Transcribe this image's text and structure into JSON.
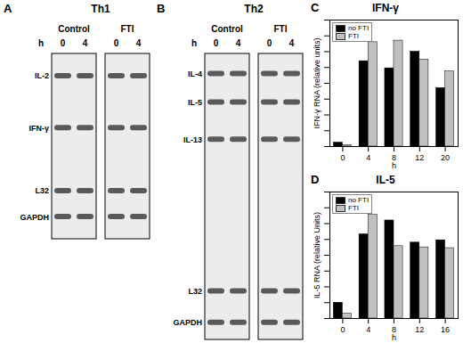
{
  "gels": [
    {
      "panel": "A",
      "title": "Th1",
      "groups": [
        "Control",
        "FTI"
      ],
      "unit": "h",
      "lanes": [
        "0",
        "4"
      ],
      "bands": [
        "IL-2",
        "IFN-γ",
        "L32",
        "GAPDH"
      ]
    },
    {
      "panel": "B",
      "title": "Th2",
      "groups": [
        "Control",
        "FTI"
      ],
      "unit": "h",
      "lanes": [
        "0",
        "4"
      ],
      "bands": [
        "IL-4",
        "IL-5",
        "IL-13",
        "L32",
        "GAPDH"
      ]
    }
  ],
  "chart_data": [
    {
      "type": "bar",
      "panel": "C",
      "title": "IFN-γ",
      "x_label": "h",
      "y_label": "IFN-γ RNA (relative units)",
      "categories": [
        0,
        4,
        8,
        12,
        20
      ],
      "series": [
        {
          "name": "no FTI",
          "color": "#000000",
          "values": [
            5,
            108,
            99,
            120,
            74
          ]
        },
        {
          "name": "FTI",
          "color": "#c0c0c0",
          "values": [
            2,
            132,
            134,
            110,
            95
          ]
        }
      ],
      "ylim": [
        0,
        160
      ],
      "yticks": [
        0,
        20,
        40,
        60,
        80,
        100,
        120,
        140,
        160
      ],
      "tick_labels": "x",
      "legend": "top-left"
    },
    {
      "type": "bar",
      "panel": "D",
      "title": "IL-5",
      "x_label": "h",
      "y_label": "IL-5 RNA (relative Units)",
      "categories": [
        0,
        4,
        8,
        12,
        16
      ],
      "series": [
        {
          "name": "no FTI",
          "color": "#000000",
          "values": [
            40,
            213,
            248,
            192,
            198
          ]
        },
        {
          "name": "FTI",
          "color": "#c0c0c0",
          "values": [
            12,
            262,
            183,
            180,
            178
          ]
        }
      ],
      "ylim": [
        0,
        320
      ],
      "yticks": [
        0,
        40,
        80,
        120,
        160,
        200,
        240,
        280,
        320
      ],
      "tick_labels": "x",
      "legend": "top-left"
    }
  ]
}
